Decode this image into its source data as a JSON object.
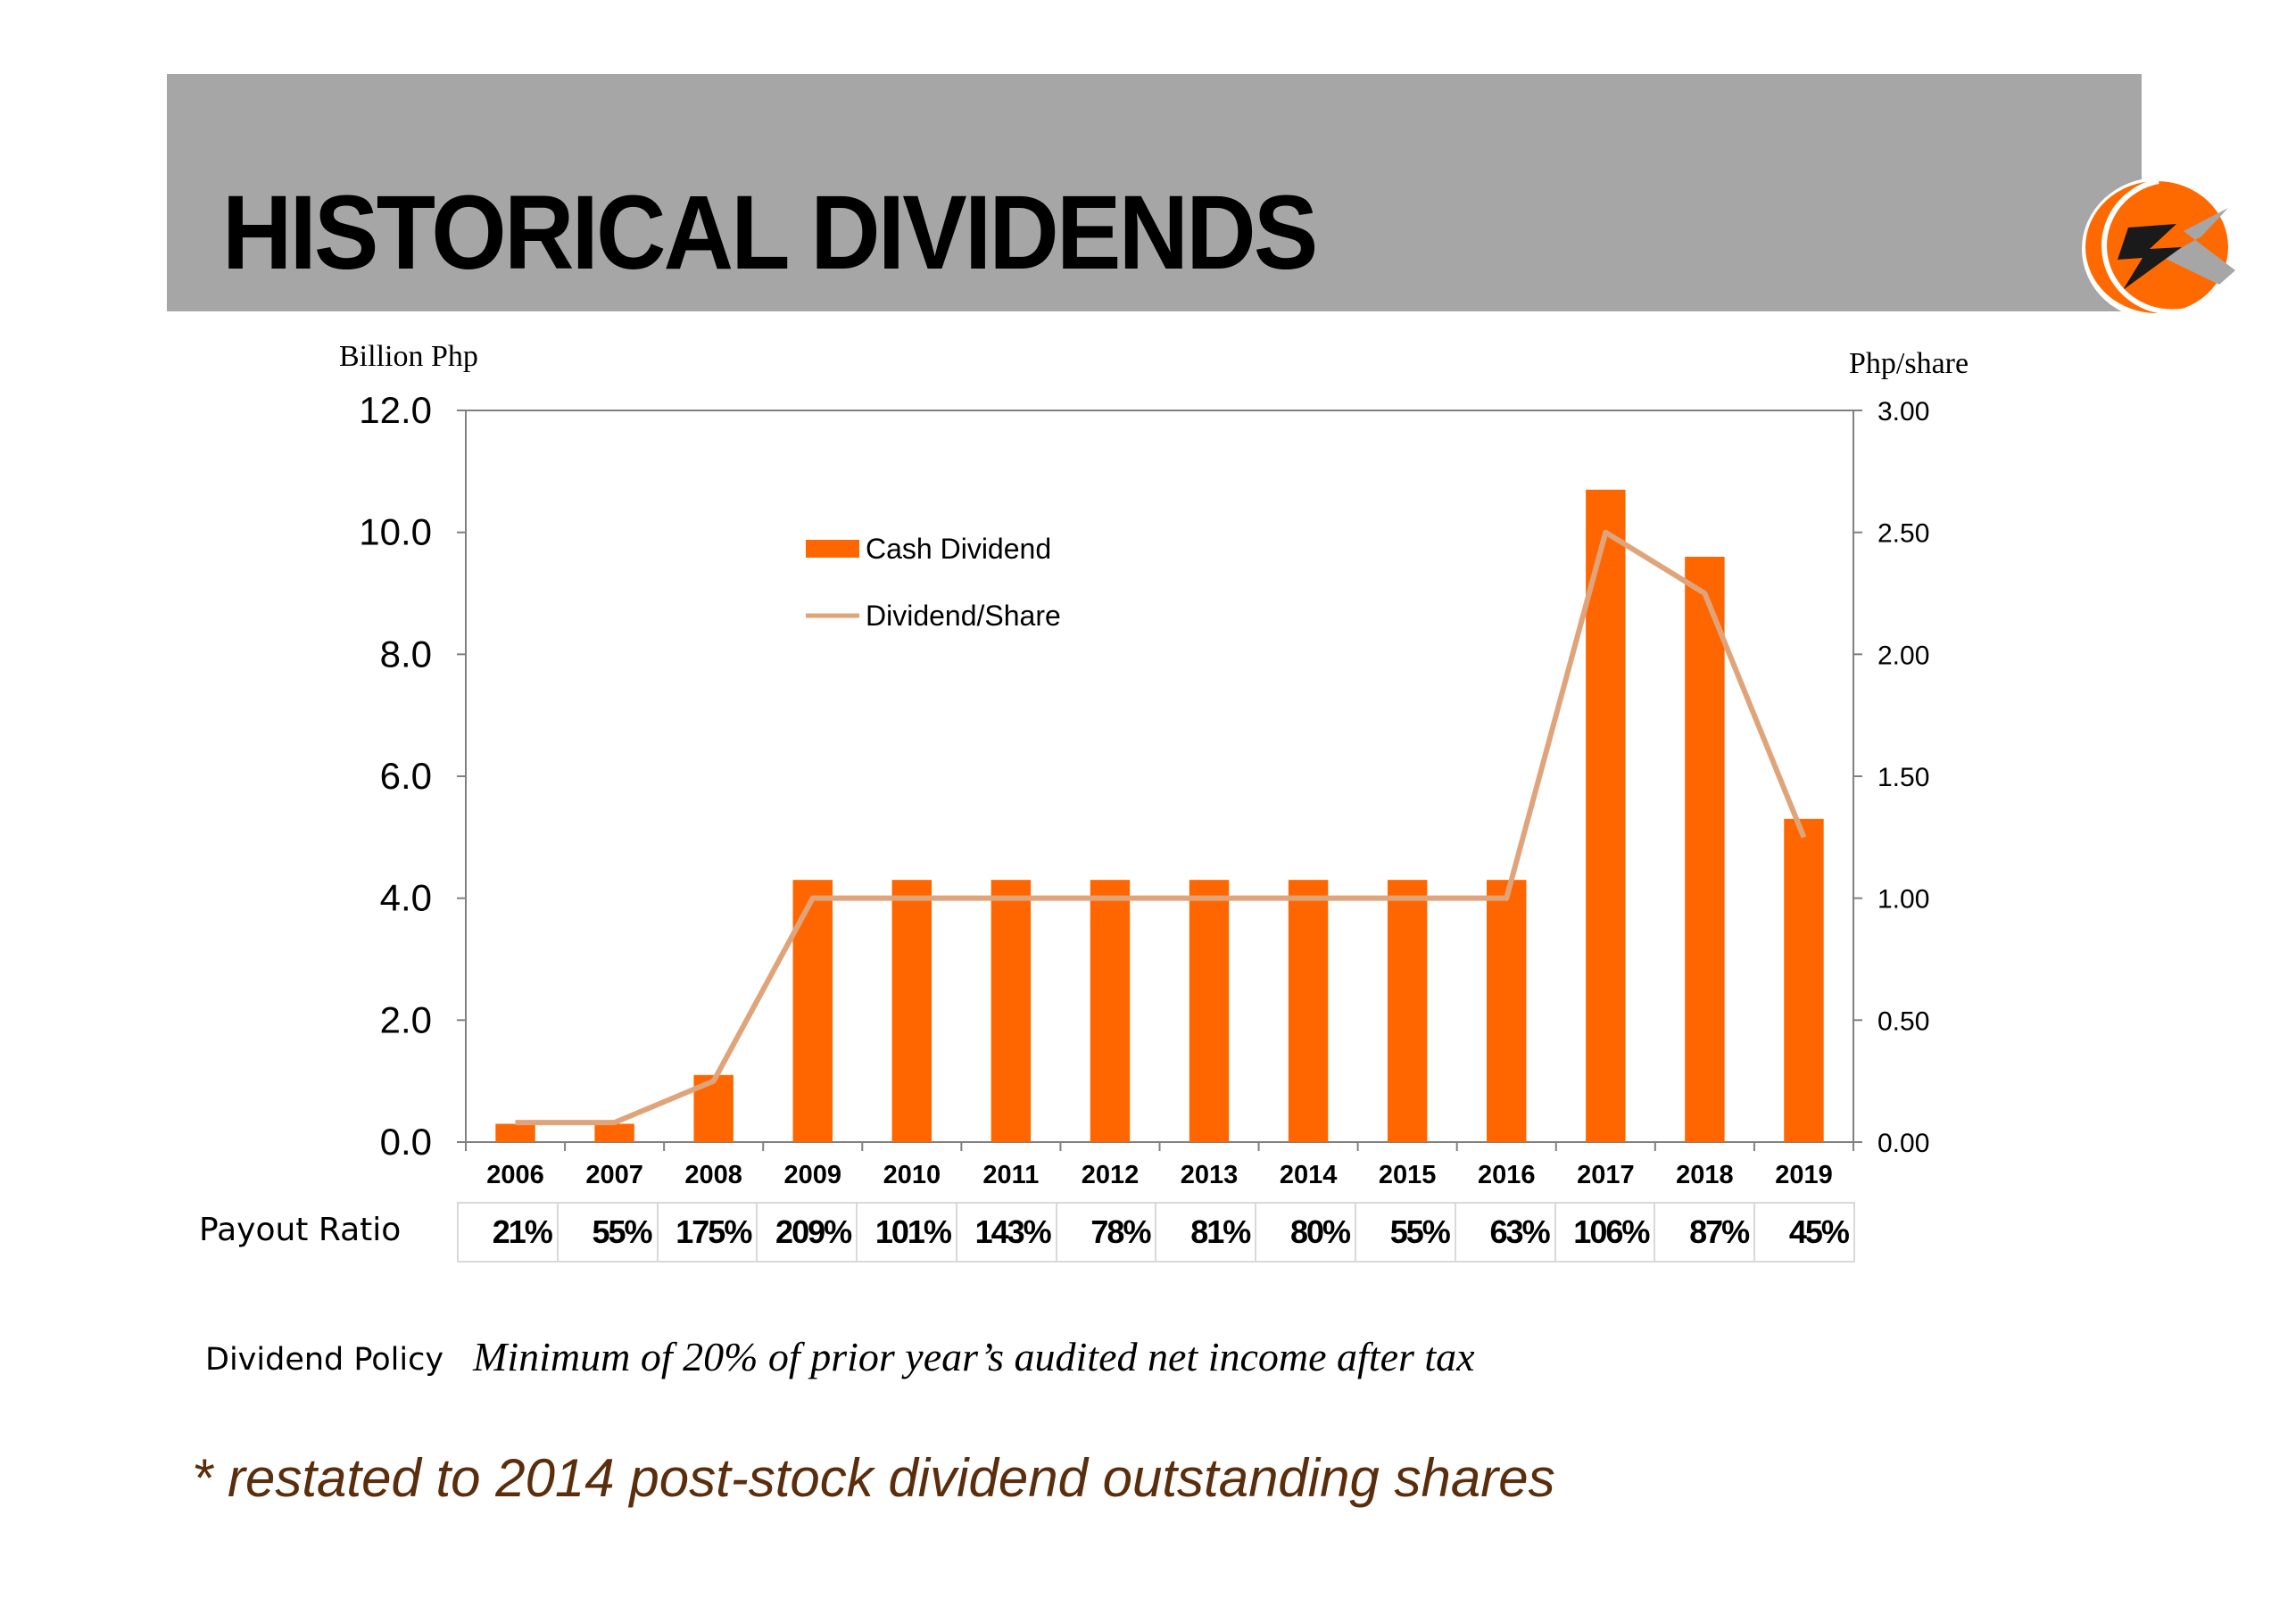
{
  "header": {
    "title": "HISTORICAL DIVIDENDS",
    "logo_icon": "lightning-c-logo-icon"
  },
  "colors": {
    "bar": "#ff6600",
    "line": "#e0a47a",
    "banner": "#a6a6a6",
    "footnote": "#5a2d0c"
  },
  "chart_data": {
    "type": "bar",
    "categories": [
      "2006",
      "2007",
      "2008",
      "2009",
      "2010",
      "2011",
      "2012",
      "2013",
      "2014",
      "2015",
      "2016",
      "2017",
      "2018",
      "2019"
    ],
    "series": [
      {
        "name": "Cash Dividend",
        "type": "bar",
        "axis": "left",
        "values": [
          0.3,
          0.3,
          1.1,
          4.3,
          4.3,
          4.3,
          4.3,
          4.3,
          4.3,
          4.3,
          4.3,
          10.7,
          9.6,
          5.3
        ]
      },
      {
        "name": "Dividend/Share",
        "type": "line",
        "axis": "right",
        "values": [
          0.08,
          0.08,
          0.25,
          1.0,
          1.0,
          1.0,
          1.0,
          1.0,
          1.0,
          1.0,
          1.0,
          2.5,
          2.25,
          1.25
        ]
      }
    ],
    "ylabel": "Billion Php",
    "y2label": "Php/share",
    "ylim": [
      0,
      12
    ],
    "y2lim": [
      0,
      3
    ],
    "yticks": [
      "0.0",
      "2.0",
      "4.0",
      "6.0",
      "8.0",
      "10.0",
      "12.0"
    ],
    "y2ticks": [
      "0.00",
      "0.50",
      "1.00",
      "1.50",
      "2.00",
      "2.50",
      "3.00"
    ],
    "legend": "top-center",
    "grid": false
  },
  "payout": {
    "label": "Payout Ratio",
    "values": [
      "21%",
      "55%",
      "175%",
      "209%",
      "101%",
      "143%",
      "78%",
      "81%",
      "80%",
      "55%",
      "63%",
      "106%",
      "87%",
      "45%"
    ]
  },
  "policy": {
    "label": "Dividend Policy",
    "text": "Minimum of 20% of prior year’s audited net income after tax"
  },
  "footnote": "* restated to 2014 post-stock dividend outstanding shares"
}
